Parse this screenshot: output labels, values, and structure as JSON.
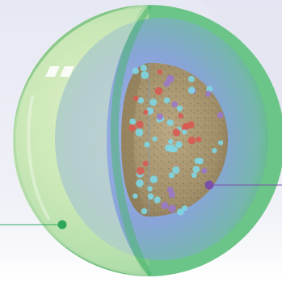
{
  "diagram": {
    "colors": {
      "background_top": "#e9ebf5",
      "background_bottom": "#ffffff",
      "outer_shell_light": "#d9edc8",
      "outer_shell_mid": "#9fd58f",
      "outer_shell_dark": "#47a85f",
      "inner_zone_blue": "#8fa6dc",
      "inner_zone_edge": "#5cb777",
      "core_tan": "#a89670",
      "core_dark": "#7a6a4d",
      "callout_left": "#2fa75d",
      "callout_right": "#7b4ea8",
      "dot_cyan": "#7fd6e3",
      "dot_purple": "#9a79c9",
      "dot_red": "#d85b52"
    },
    "icons": [
      "specular-highlight-icon"
    ],
    "callouts": [
      {
        "name": "outer-shell-callout",
        "color": "#2fa75d"
      },
      {
        "name": "core-particle-callout",
        "color": "#7b4ea8"
      }
    ]
  }
}
